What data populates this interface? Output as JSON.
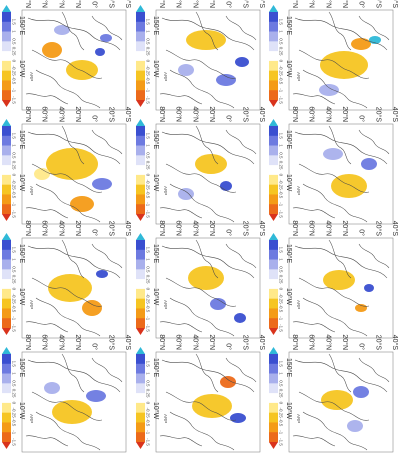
{
  "axis_labels": {
    "lat": [
      "80°N",
      "60°N",
      "40°N",
      "20°N",
      "0°",
      "20°S",
      "40°S"
    ],
    "lon": [
      "150°E",
      "10°W"
    ]
  },
  "colorbar": {
    "tick_labels": [
      "1.5",
      "1",
      "0.5",
      "0.25",
      "0",
      "-0.25",
      "-0.5",
      "-1",
      "-1.5"
    ],
    "colors": [
      "#2fb9d8",
      "#3a4fd0",
      "#6d7ae0",
      "#a9b0ec",
      "#dfe2f8",
      "#ffffff",
      "#ffe98a",
      "#f6c522",
      "#f49b17",
      "#ec6a1a",
      "#d9331c"
    ]
  },
  "panels": [
    {
      "id": "r1c1",
      "label": "ARP"
    },
    {
      "id": "r1c2",
      "label": "ARP"
    },
    {
      "id": "r1c3",
      "label": "ARP"
    },
    {
      "id": "r1c4",
      "label": "ARP"
    },
    {
      "id": "r2c1",
      "label": "ARP"
    },
    {
      "id": "r2c2",
      "label": "ARP"
    },
    {
      "id": "r2c3",
      "label": "ARP"
    },
    {
      "id": "r2c4",
      "label": "ARP"
    },
    {
      "id": "r3c1",
      "label": "ARP"
    },
    {
      "id": "r3c2",
      "label": "ARP"
    },
    {
      "id": "r3c3",
      "label": "ARP"
    },
    {
      "id": "r3c4",
      "label": "ARP"
    }
  ]
}
